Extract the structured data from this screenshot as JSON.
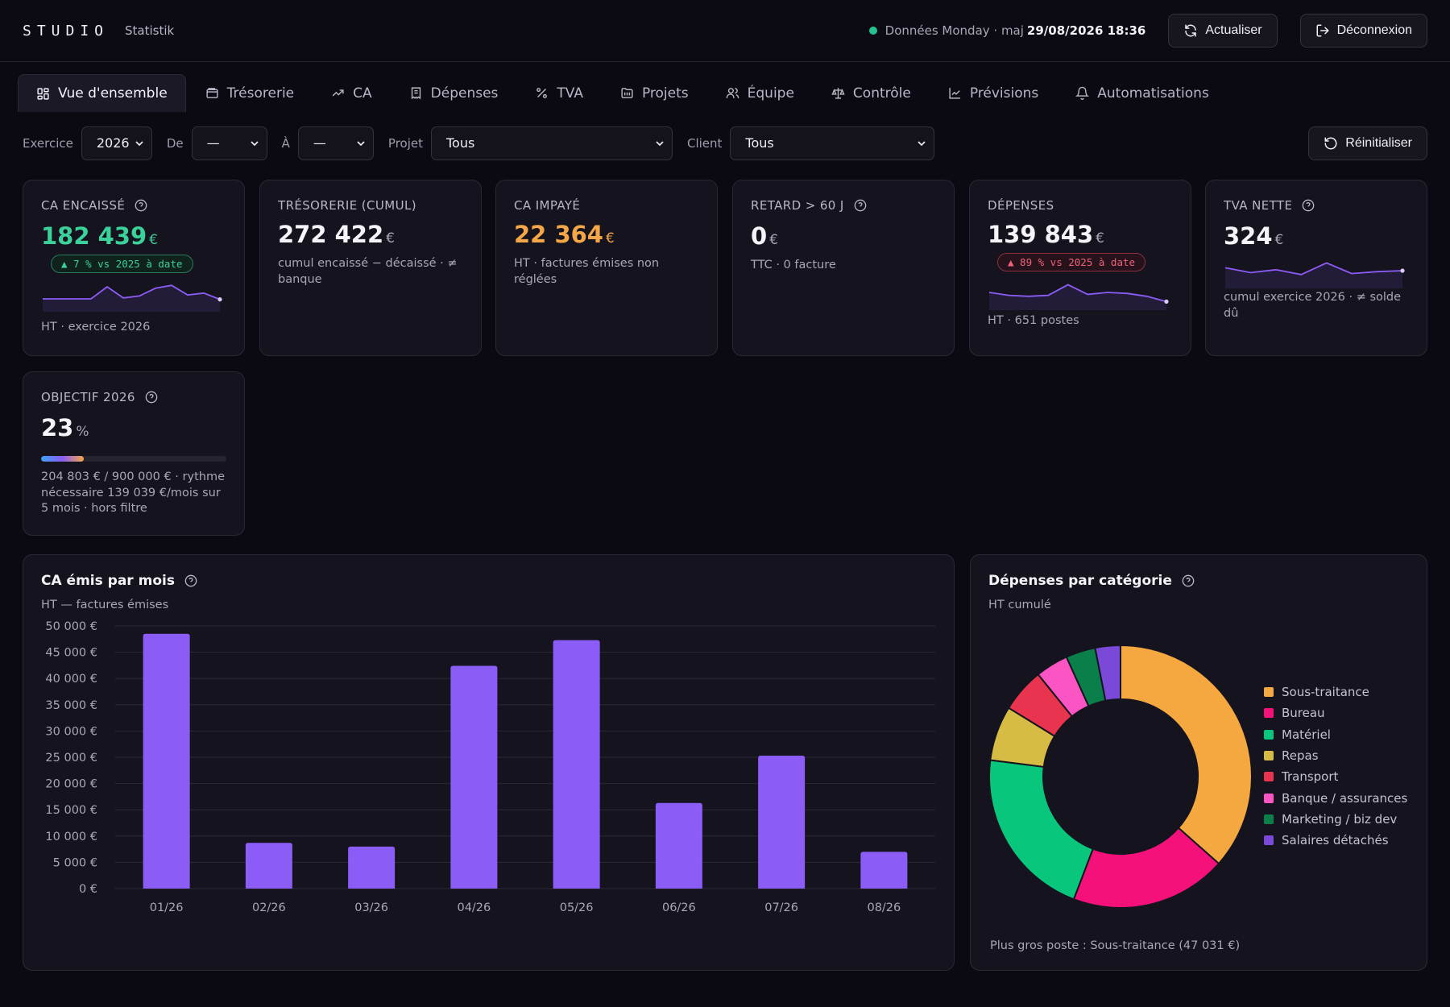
{
  "header": {
    "brand": "STUDIO",
    "brand_sub": "Statistik",
    "status_text": "Données Monday · maj",
    "status_time": "29/08/2026 18:36",
    "refresh_label": "Actualiser",
    "logout_label": "Déconnexion"
  },
  "tabs": [
    {
      "label": "Vue d'ensemble",
      "icon": "grid-icon",
      "active": true
    },
    {
      "label": "Trésorerie",
      "icon": "wallet-icon"
    },
    {
      "label": "CA",
      "icon": "trend-up-icon"
    },
    {
      "label": "Dépenses",
      "icon": "receipt-icon"
    },
    {
      "label": "TVA",
      "icon": "percent-icon"
    },
    {
      "label": "Projets",
      "icon": "folder-icon"
    },
    {
      "label": "Équipe",
      "icon": "users-icon"
    },
    {
      "label": "Contrôle",
      "icon": "scale-icon"
    },
    {
      "label": "Prévisions",
      "icon": "line-chart-icon"
    },
    {
      "label": "Automatisations",
      "icon": "bell-icon"
    }
  ],
  "filters": {
    "exercice_label": "Exercice",
    "exercice_value": "2026",
    "de_label": "De",
    "de_value": "—",
    "a_label": "À",
    "a_value": "—",
    "projet_label": "Projet",
    "projet_value": "Tous",
    "client_label": "Client",
    "client_value": "Tous",
    "reset_label": "Réinitialiser"
  },
  "kpis": {
    "ca_encaisse": {
      "label": "CA encaissé",
      "value": "182 439",
      "unit": "€",
      "badge": "▲ 7 % vs 2025 à date",
      "sub": "HT · exercice 2026"
    },
    "tresorerie": {
      "label": "Trésorerie (cumul)",
      "value": "272 422",
      "unit": "€",
      "sub": "cumul encaissé − décaissé · ≠ banque"
    },
    "ca_impaye": {
      "label": "CA impayé",
      "value": "22 364",
      "unit": "€",
      "sub": "HT · factures émises non réglées"
    },
    "retard": {
      "label": "Retard > 60 j",
      "value": "0",
      "unit": "€",
      "sub": "TTC · 0 facture"
    },
    "depenses": {
      "label": "Dépenses",
      "value": "139 843",
      "unit": "€",
      "badge": "▲ 89 % vs 2025 à date",
      "sub": "HT · 651 postes"
    },
    "tva_nette": {
      "label": "TVA nette",
      "value": "324",
      "unit": "€",
      "sub": "cumul exercice 2026 · ≠ solde dû"
    },
    "objectif": {
      "label": "Objectif 2026",
      "value": "23",
      "unit": "%",
      "progress": 0.23,
      "sub": "204 803 € / 900 000 € · rythme nécessaire 139 039 €/mois sur 5 mois · hors filtre"
    }
  },
  "colors": {
    "accent": "#8b5cf6",
    "green": "#3bd19a",
    "orange": "#f5a747",
    "red": "#f0627a"
  },
  "ca_panel": {
    "title": "CA émis par mois",
    "subtitle": "HT — factures émises"
  },
  "dep_panel": {
    "title": "Dépenses par catégorie",
    "subtitle": "HT cumulé",
    "footer": "Plus gros poste : Sous-traitance (47 031 €)"
  },
  "chart_data": [
    {
      "type": "bar",
      "title": "CA émis par mois",
      "categories": [
        "01/26",
        "02/26",
        "03/26",
        "04/26",
        "05/26",
        "06/26",
        "07/26",
        "08/26"
      ],
      "values": [
        48500,
        8700,
        8000,
        42400,
        47300,
        16300,
        25300,
        7000
      ],
      "y_ticks": [
        "0 €",
        "5 000 €",
        "10 000 €",
        "15 000 €",
        "20 000 €",
        "25 000 €",
        "30 000 €",
        "35 000 €",
        "40 000 €",
        "45 000 €",
        "50 000 €"
      ],
      "ylim": [
        0,
        50000
      ],
      "grid": true,
      "color": "#8b5cf6"
    },
    {
      "type": "pie",
      "title": "Dépenses par catégorie",
      "labels": [
        "Sous-traitance",
        "Bureau",
        "Matériel",
        "Repas",
        "Transport",
        "Banque / assurances",
        "Marketing / biz dev",
        "Salaires détachés"
      ],
      "values": [
        47031,
        24800,
        27300,
        8700,
        7000,
        5200,
        4700,
        4000
      ],
      "colors": [
        "#f5a83f",
        "#f5117a",
        "#08c77c",
        "#d6bb45",
        "#e8344e",
        "#fa55c2",
        "#0a7f4a",
        "#7b49d8"
      ],
      "legend": "right"
    }
  ],
  "sparklines": {
    "ca_encaisse": [
      2,
      2,
      2,
      2,
      4.5,
      2.2,
      2.6,
      4.2,
      4.8,
      2.8,
      3.2,
      1.9
    ],
    "depenses": [
      3.0,
      2.4,
      2.2,
      2.4,
      4.6,
      2.6,
      3.0,
      2.8,
      2.2,
      1.1
    ],
    "tva_nette": [
      3.6,
      2.6,
      3.2,
      2.2,
      4.6,
      2.4,
      2.8,
      3.0
    ]
  }
}
